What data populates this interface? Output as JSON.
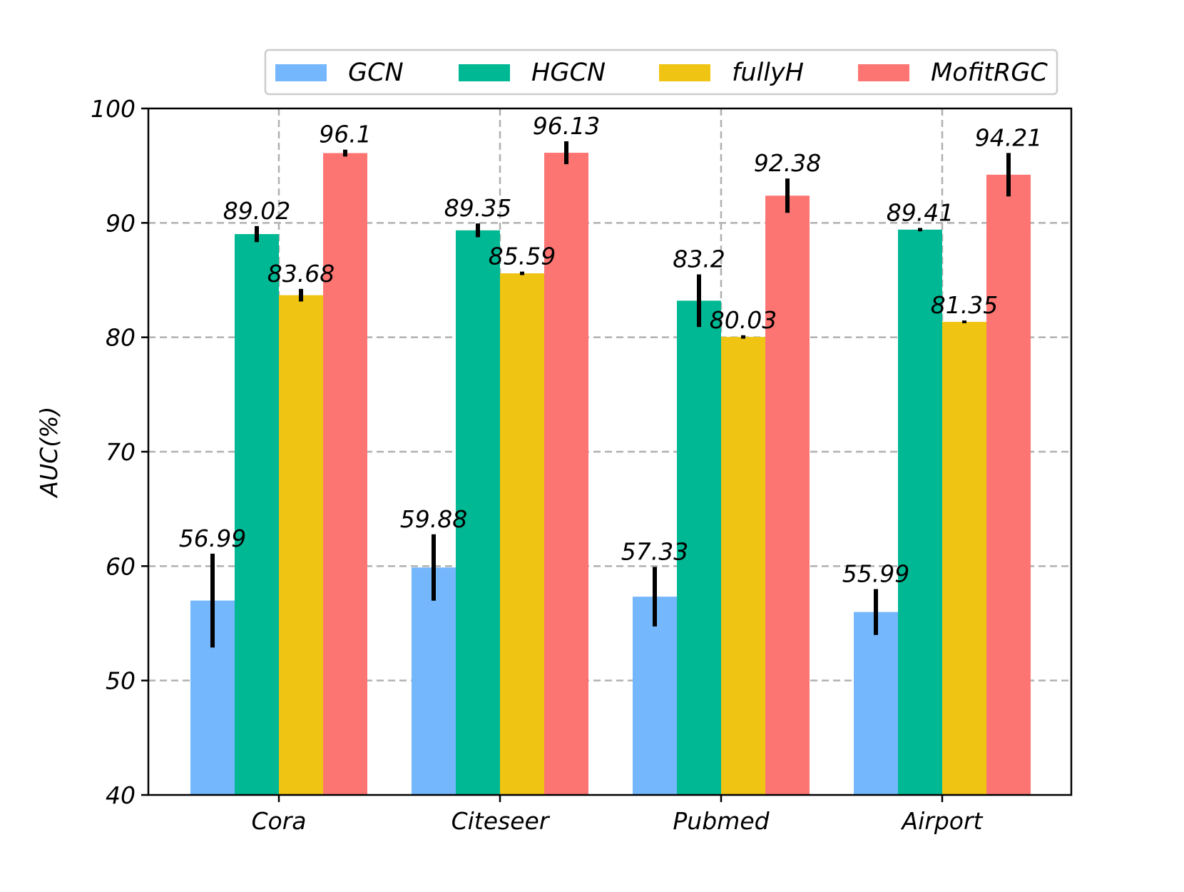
{
  "chart_data": {
    "type": "bar",
    "title": "",
    "xlabel": "",
    "ylabel": "AUC(%)",
    "ylim": [
      40,
      100
    ],
    "yticks": [
      40,
      50,
      60,
      70,
      80,
      90,
      100
    ],
    "grid": true,
    "legend_position": "top",
    "categories": [
      "Cora",
      "Citeseer",
      "Pubmed",
      "Airport"
    ],
    "series": [
      {
        "name": "GCN",
        "color": "#74b7fd",
        "values": [
          56.99,
          59.88,
          57.33,
          55.99
        ],
        "errors": [
          4.1,
          2.9,
          2.6,
          2.0
        ],
        "labels": [
          "56.99",
          "59.88",
          "57.33",
          "55.99"
        ]
      },
      {
        "name": "HGCN",
        "color": "#00b894",
        "values": [
          89.02,
          89.35,
          83.2,
          89.41
        ],
        "errors": [
          0.7,
          0.6,
          2.3,
          0.15
        ],
        "labels": [
          "89.02",
          "89.35",
          "83.2",
          "89.41"
        ]
      },
      {
        "name": "fullyH",
        "color": "#f0c412",
        "values": [
          83.68,
          85.59,
          80.03,
          81.35
        ],
        "errors": [
          0.55,
          0.15,
          0.15,
          0.12
        ],
        "labels": [
          "83.68",
          "85.59",
          "80.03",
          "81.35"
        ]
      },
      {
        "name": "MofitRGC",
        "color": "#fd7573",
        "values": [
          96.1,
          96.13,
          92.38,
          94.21
        ],
        "errors": [
          0.3,
          1.0,
          1.5,
          1.9
        ],
        "labels": [
          "96.1",
          "96.13",
          "92.38",
          "94.21"
        ]
      }
    ]
  }
}
